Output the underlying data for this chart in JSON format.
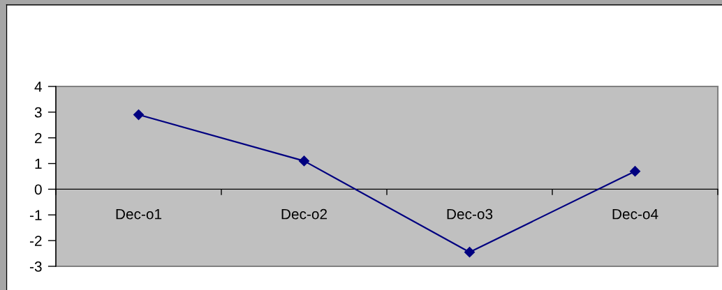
{
  "chart_data": {
    "type": "line",
    "categories": [
      "Dec-o1",
      "Dec-o2",
      "Dec-o3",
      "Dec-o4"
    ],
    "series": [
      {
        "color": "#000080",
        "values": [
          2.9,
          1.1,
          -2.45,
          0.7
        ]
      }
    ],
    "ylim": [
      -3,
      4
    ],
    "yticks": [
      -3,
      -2,
      -1,
      0,
      1,
      2,
      3,
      4
    ],
    "grid": false,
    "marker": "diamond",
    "line_style": "solid"
  }
}
